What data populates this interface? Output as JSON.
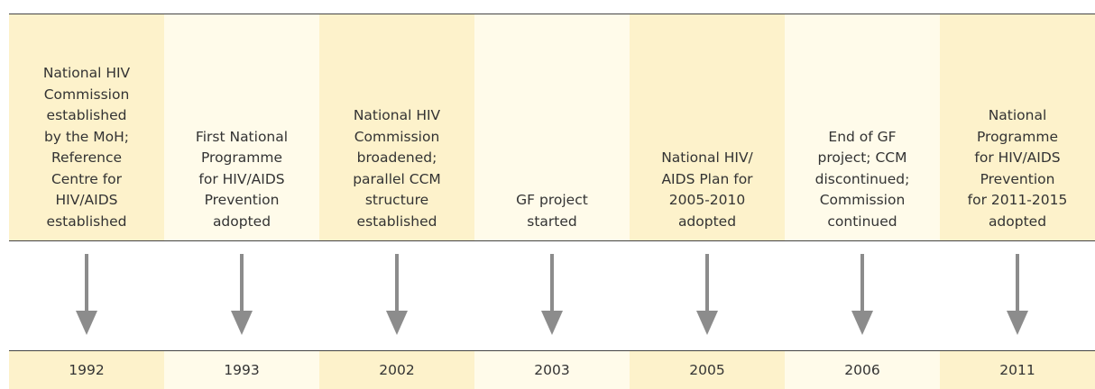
{
  "events": [
    {
      "lines": [
        "National HIV",
        "Commission",
        "established",
        "by the MoH;",
        "Reference",
        "Centre for",
        "HIV/AIDS",
        "established"
      ],
      "year": "1992"
    },
    {
      "lines": [
        "First National",
        "Programme",
        "for HIV/AIDS",
        "Prevention",
        "adopted"
      ],
      "year": "1993"
    },
    {
      "lines": [
        "National HIV",
        "Commission",
        "broadened;",
        "parallel CCM",
        "structure",
        "established"
      ],
      "year": "2002"
    },
    {
      "lines": [
        "GF project",
        "started"
      ],
      "year": "2003"
    },
    {
      "lines": [
        "National HIV/",
        "AIDS Plan for",
        "2005-2010",
        "adopted"
      ],
      "year": "2005"
    },
    {
      "lines": [
        "End of GF",
        "project; CCM",
        "discontinued;",
        "Commission",
        "continued"
      ],
      "year": "2006"
    },
    {
      "lines": [
        "National",
        "Programme",
        "for HIV/AIDS",
        "Prevention",
        "for 2011-2015",
        "adopted"
      ],
      "year": "2011"
    }
  ]
}
